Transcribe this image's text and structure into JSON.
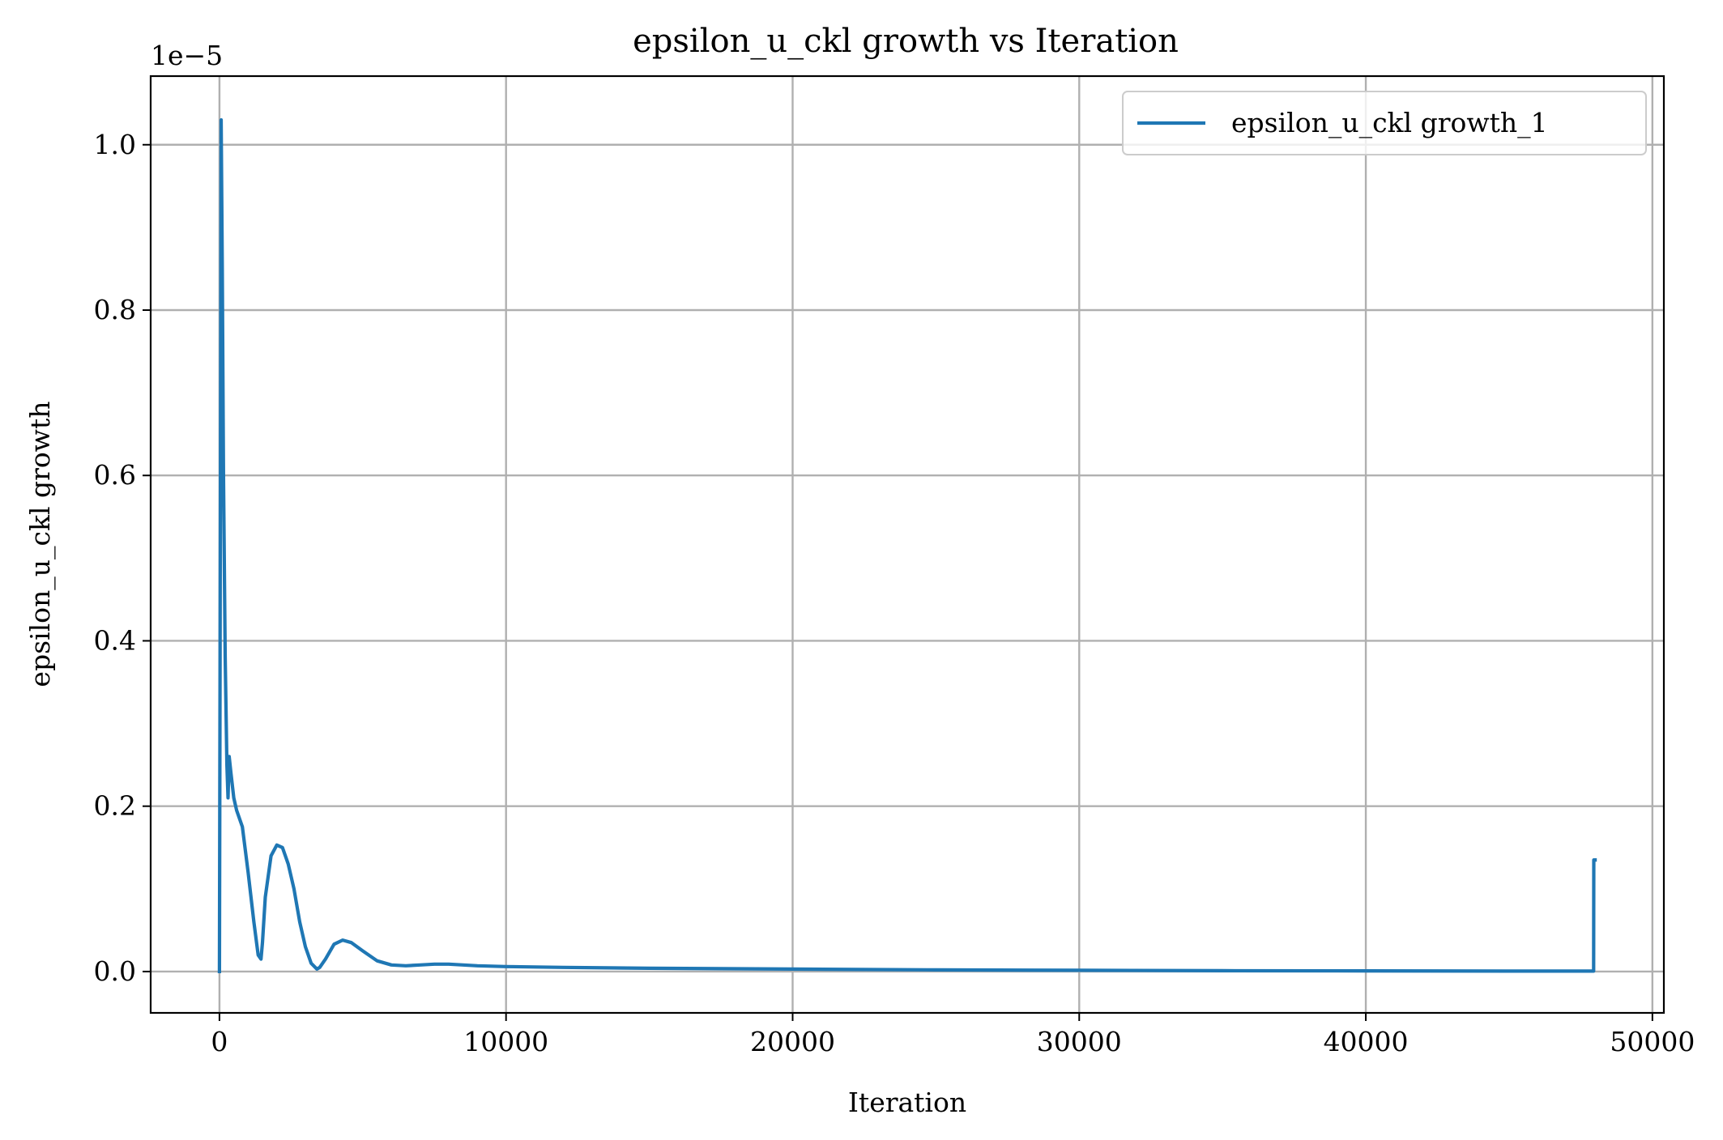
{
  "chart_data": {
    "type": "line",
    "title": "epsilon_u_ckl growth vs Iteration",
    "xlabel": "Iteration",
    "ylabel": "epsilon_u_ckl growth",
    "y_offset_label": "1e−5",
    "xlim": [
      -2400,
      50400
    ],
    "ylim": [
      -0.05,
      1.083
    ],
    "y_scale_factor": 1e-05,
    "xticks": [
      0,
      10000,
      20000,
      30000,
      40000,
      50000
    ],
    "xtick_labels": [
      "0",
      "10000",
      "20000",
      "30000",
      "40000",
      "50000"
    ],
    "yticks": [
      0.0,
      0.2,
      0.4,
      0.6,
      0.8,
      1.0
    ],
    "ytick_labels": [
      "0.0",
      "0.2",
      "0.4",
      "0.6",
      "0.8",
      "1.0"
    ],
    "grid": true,
    "legend_position": "top-right",
    "series": [
      {
        "name": "epsilon_u_ckl growth_1",
        "color": "#1f77b4",
        "x": [
          0,
          60,
          100,
          140,
          200,
          260,
          300,
          340,
          400,
          500,
          600,
          800,
          1000,
          1200,
          1350,
          1450,
          1500,
          1600,
          1800,
          2000,
          2200,
          2400,
          2600,
          2800,
          3000,
          3200,
          3400,
          3500,
          3700,
          4000,
          4300,
          4600,
          5000,
          5500,
          6000,
          6500,
          7000,
          7500,
          8000,
          9000,
          10000,
          12000,
          15000,
          20000,
          25000,
          30000,
          35000,
          40000,
          45000,
          47900,
          47950,
          47955,
          48000
        ],
        "y": [
          0.0,
          1.03,
          0.85,
          0.6,
          0.38,
          0.25,
          0.21,
          0.26,
          0.24,
          0.21,
          0.195,
          0.175,
          0.12,
          0.06,
          0.02,
          0.015,
          0.035,
          0.09,
          0.14,
          0.153,
          0.15,
          0.13,
          0.1,
          0.06,
          0.03,
          0.01,
          0.003,
          0.005,
          0.015,
          0.033,
          0.038,
          0.035,
          0.025,
          0.013,
          0.008,
          0.007,
          0.008,
          0.009,
          0.009,
          0.007,
          0.006,
          0.005,
          0.004,
          0.003,
          0.002,
          0.0015,
          0.001,
          0.0008,
          0.0005,
          0.0005,
          0.0005,
          0.135,
          0.135
        ]
      }
    ]
  }
}
